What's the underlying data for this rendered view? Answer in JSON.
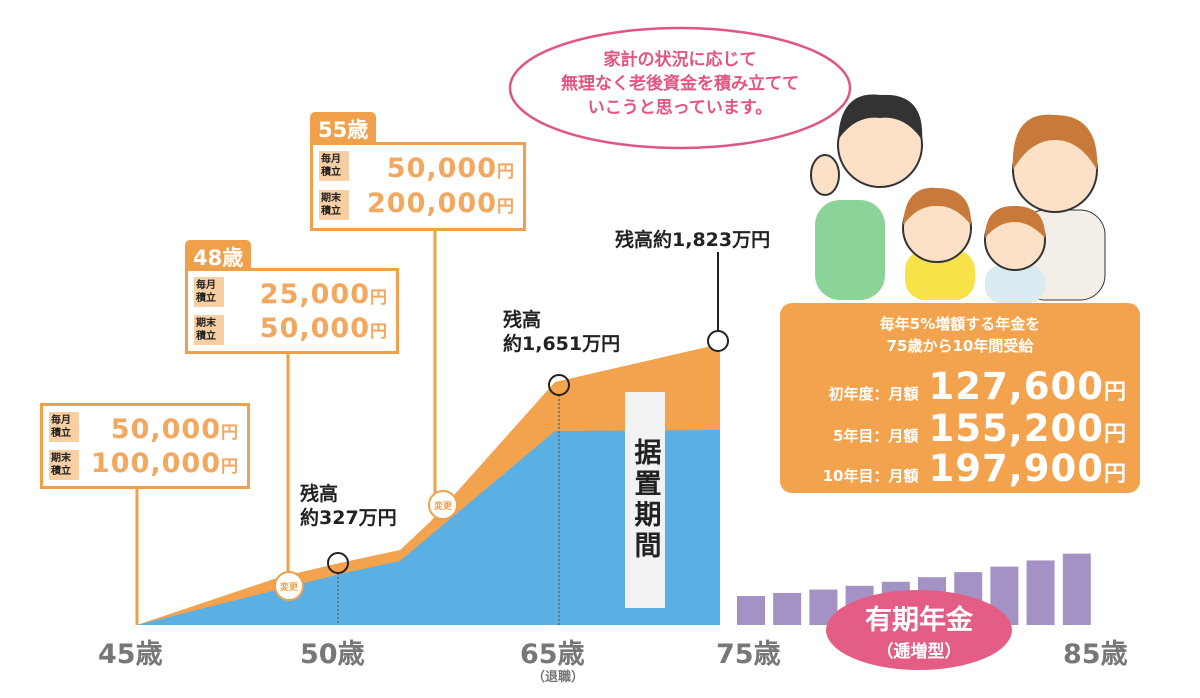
{
  "speech_bubble": {
    "lines": [
      "家計の状況に応じて",
      "無理なく老後資金を積み立てて",
      "いこうと思っています。"
    ]
  },
  "plans": [
    {
      "age": "",
      "monthly_label": "毎月積立",
      "monthly": "50,000",
      "end_label": "期末積立",
      "end": "100,000",
      "yen": "円"
    },
    {
      "age": "48歳",
      "monthly_label": "毎月積立",
      "monthly": "25,000",
      "end_label": "期末積立",
      "end": "50,000",
      "yen": "円"
    },
    {
      "age": "55歳",
      "monthly_label": "毎月積立",
      "monthly": "50,000",
      "end_label": "期末積立",
      "end": "200,000",
      "yen": "円"
    }
  ],
  "change_badges": [
    "変更",
    "変更"
  ],
  "balances": [
    {
      "line1": "残高",
      "line2": "約327万円"
    },
    {
      "line1": "残高",
      "line2": "約1,651万円"
    },
    {
      "line1": "残高約1,823万円"
    }
  ],
  "deferral_period": "据置期間",
  "axis_ages": [
    {
      "label": "45歳"
    },
    {
      "label": "50歳"
    },
    {
      "label": "65歳",
      "note": "（退職）"
    },
    {
      "label": "75歳"
    },
    {
      "label": "85歳"
    }
  ],
  "pension_box": {
    "heading": [
      "毎年5%増額する年金を",
      "75歳から10年間受給"
    ],
    "rows": [
      {
        "label": "初年度：月額",
        "amount": "127,600",
        "yen": "円"
      },
      {
        "label": "5年目：月額",
        "amount": "155,200",
        "yen": "円"
      },
      {
        "label": "10年目：月額",
        "amount": "197,900",
        "yen": "円"
      }
    ]
  },
  "pension_type": {
    "title": "有期年金",
    "subtitle": "（逓増型）"
  },
  "colors": {
    "orange": "#f3a24d",
    "blue": "#5aafe3",
    "purple": "#a492c5",
    "pink": "#e35d84",
    "axis_gray": "#777777"
  },
  "chart_data": {
    "type": "area",
    "series": [
      {
        "ages": [
          45,
          50,
          65,
          75
        ],
        "balance_man_yen": [
          0,
          327,
          1651,
          1823
        ]
      }
    ],
    "annuity_bars": {
      "count": 10,
      "growth_rate_percent": 5,
      "monthly_amounts": {
        "year1": 127600,
        "year5": 155200,
        "year10": 197900
      }
    }
  }
}
